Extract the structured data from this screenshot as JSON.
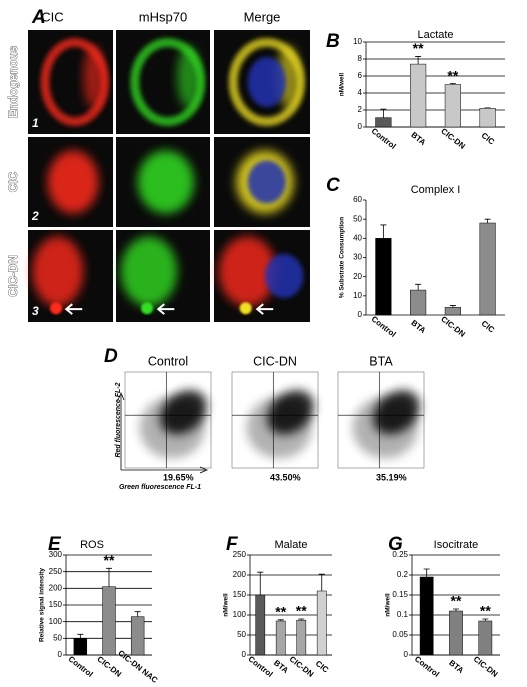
{
  "panel_a": {
    "letter": "A",
    "columns": [
      "CIC",
      "mHsp70",
      "Merge"
    ],
    "rows": [
      "Endogenous",
      "CIC",
      "CIC-DN"
    ],
    "row_numbers": [
      "1",
      "2",
      "3"
    ]
  },
  "panel_d": {
    "letter": "D",
    "titles": [
      "Control",
      "CIC-DN",
      "BTA"
    ],
    "percents": [
      "19.65%",
      "43.50%",
      "35.19%"
    ],
    "ylabel": "Red fluorescence FL-2",
    "xlabel": "Green fluorescence FL-1"
  },
  "chart_data": [
    {
      "type": "bar",
      "letter": "B",
      "title": "Lactate",
      "ylabel": "nM/well",
      "categories": [
        "Control",
        "BTA",
        "CIC-DN",
        "CIC"
      ],
      "values": [
        1.1,
        7.4,
        5.0,
        2.2
      ],
      "errors": [
        1.0,
        0.9,
        0.1,
        0.05
      ],
      "colors": [
        "#595959",
        "#c8c8c8",
        "#c8c8c8",
        "#c8c8c8"
      ],
      "ylim": [
        0,
        10
      ],
      "yticks": [
        0,
        2,
        4,
        6,
        8,
        10
      ],
      "grid": true,
      "annotations": [
        {
          "index": 1,
          "text": "**"
        },
        {
          "index": 2,
          "text": "**"
        }
      ]
    },
    {
      "type": "bar",
      "letter": "C",
      "title": "Complex I",
      "ylabel": "% Substrate Consumption",
      "categories": [
        "Control",
        "BTA",
        "CIC-DN",
        "CIC"
      ],
      "values": [
        40,
        13,
        4,
        48
      ],
      "errors": [
        7,
        3,
        1,
        2
      ],
      "colors": [
        "#000000",
        "#8c8c8c",
        "#8c8c8c",
        "#8c8c8c"
      ],
      "ylim": [
        0,
        60
      ],
      "yticks": [
        0,
        10,
        20,
        30,
        40,
        50,
        60
      ],
      "grid": false
    },
    {
      "type": "bar",
      "letter": "E",
      "title": "ROS",
      "ylabel": "Relative signal intensity",
      "categories": [
        "Control",
        "CIC-DN",
        "CIC-DN NAC"
      ],
      "values": [
        50,
        205,
        115
      ],
      "errors": [
        12,
        55,
        15
      ],
      "colors": [
        "#000000",
        "#8c8c8c",
        "#8c8c8c"
      ],
      "ylim": [
        0,
        300
      ],
      "yticks": [
        0,
        50,
        100,
        150,
        200,
        250,
        300
      ],
      "grid": true,
      "annotations": [
        {
          "index": 1,
          "text": "**"
        }
      ]
    },
    {
      "type": "bar",
      "letter": "F",
      "title": "Malate",
      "ylabel": "nM/well",
      "categories": [
        "Control",
        "BTA",
        "CIC-DN",
        "CIC"
      ],
      "values": [
        150,
        85,
        87,
        160
      ],
      "errors": [
        57,
        3,
        3,
        42
      ],
      "colors": [
        "#595959",
        "#a6a6a6",
        "#a6a6a6",
        "#d0d0d0"
      ],
      "ylim": [
        0,
        250
      ],
      "yticks": [
        0,
        50,
        100,
        150,
        200,
        250
      ],
      "grid": true,
      "annotations": [
        {
          "index": 1,
          "text": "**"
        },
        {
          "index": 2,
          "text": "**"
        }
      ]
    },
    {
      "type": "bar",
      "letter": "G",
      "title": "Isocitrate",
      "ylabel": "nM/well",
      "categories": [
        "Control",
        "BTA",
        "CIC-DN"
      ],
      "values": [
        0.195,
        0.11,
        0.085
      ],
      "errors": [
        0.02,
        0.005,
        0.005
      ],
      "colors": [
        "#000000",
        "#808080",
        "#808080"
      ],
      "ylim": [
        0,
        0.25
      ],
      "yticks": [
        0,
        0.05,
        0.1,
        0.15,
        0.2,
        0.25
      ],
      "grid": true,
      "annotations": [
        {
          "index": 1,
          "text": "**"
        },
        {
          "index": 2,
          "text": "**"
        }
      ]
    }
  ]
}
